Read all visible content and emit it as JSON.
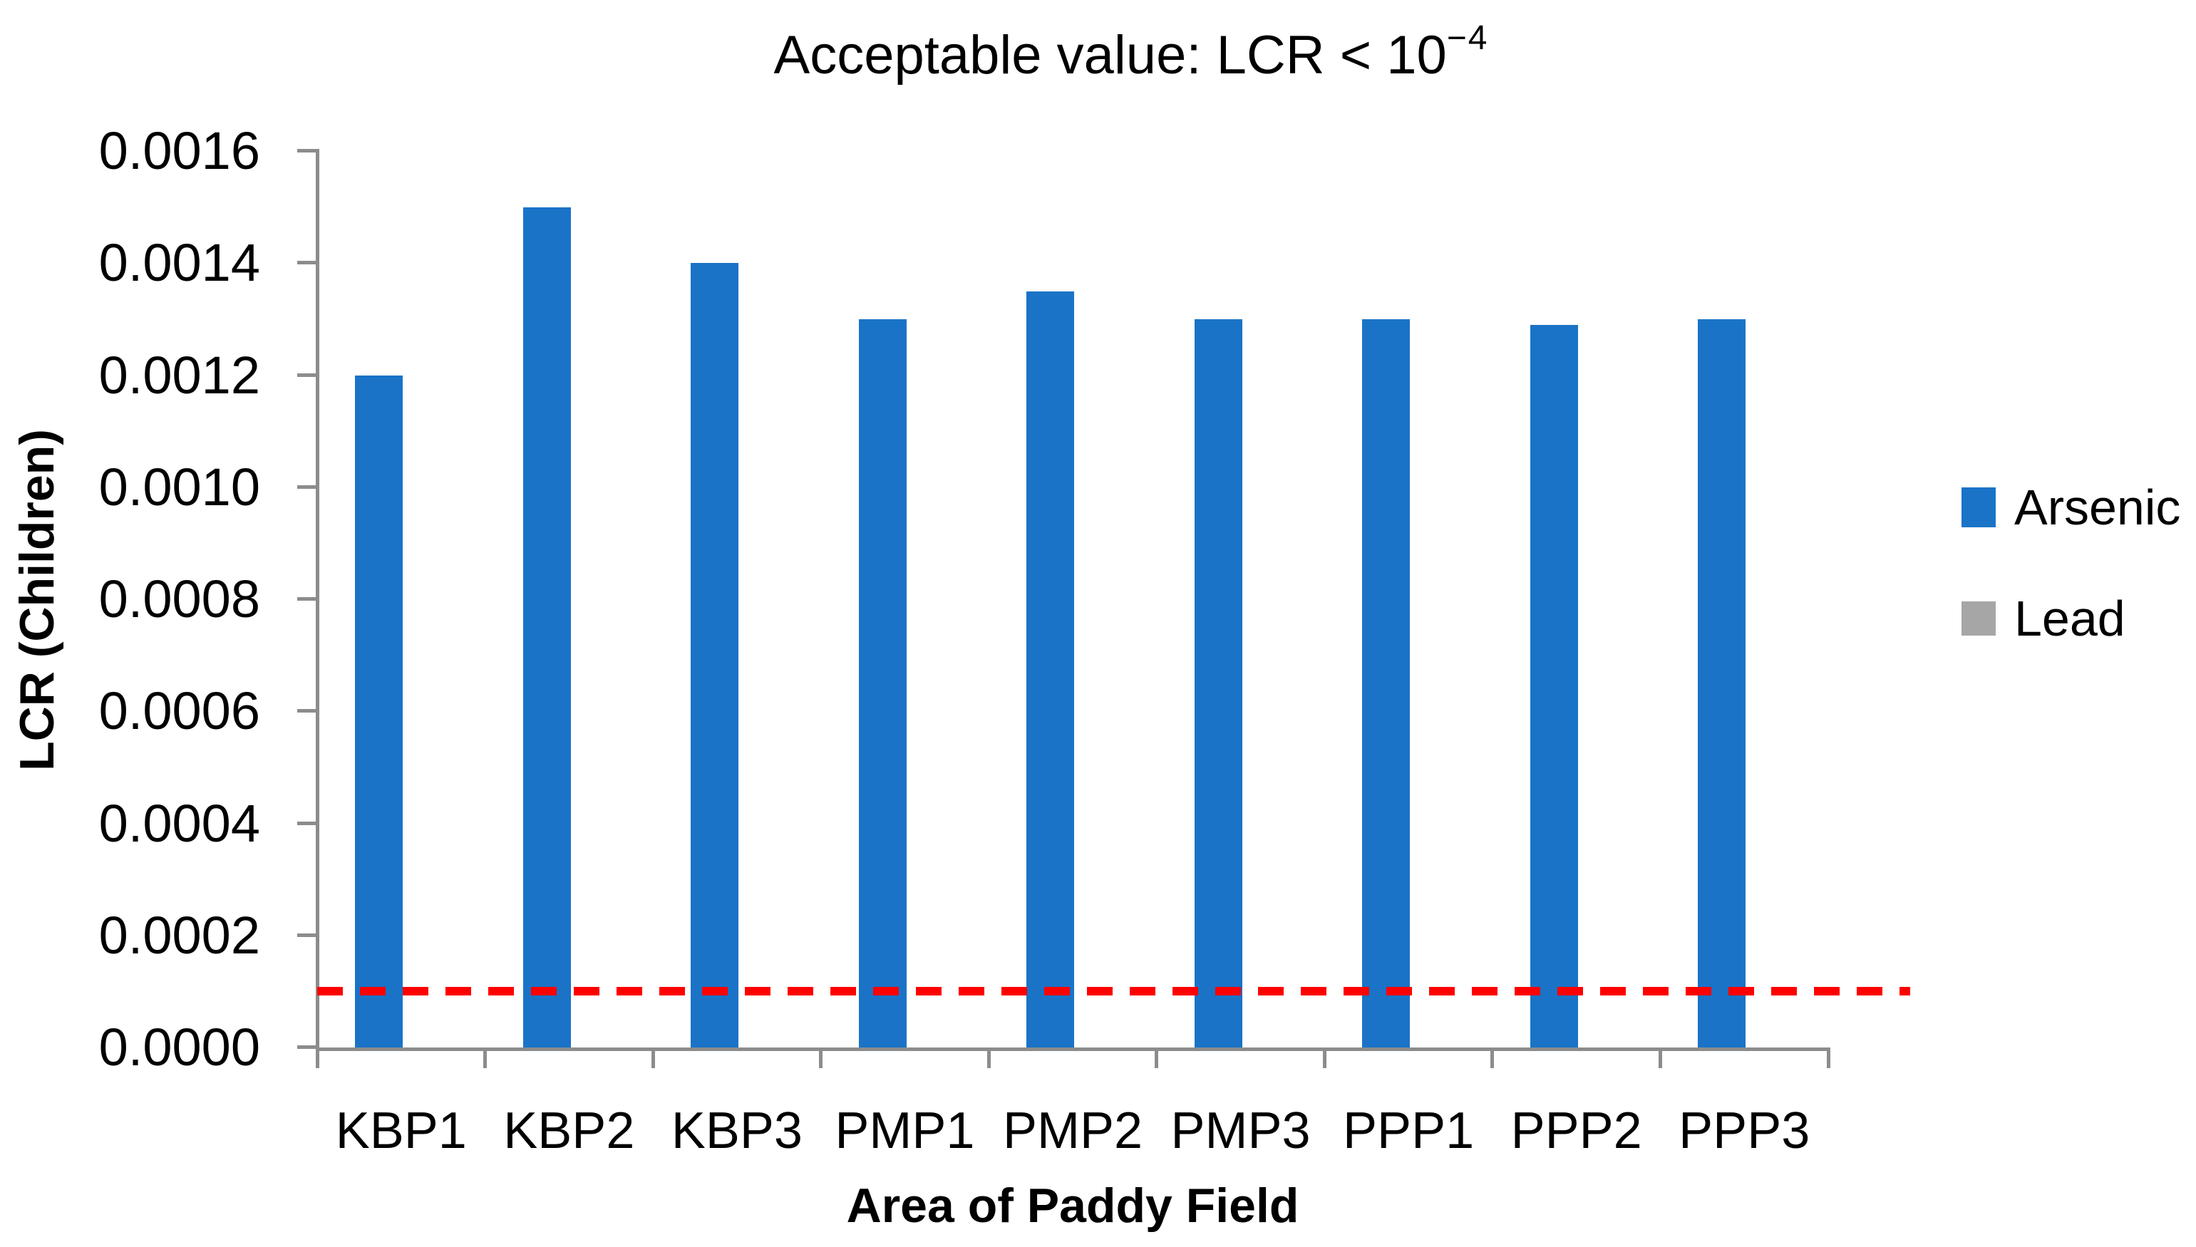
{
  "chart_data": {
    "type": "bar",
    "title": "Acceptable value: LCR < 10⁻⁴",
    "title_main": "Acceptable value: LCR < 10",
    "title_superscript": "−4",
    "xlabel": "Area of Paddy Field",
    "ylabel": "LCR (Children)",
    "categories": [
      "KBP1",
      "KBP2",
      "KBP3",
      "PMP1",
      "PMP2",
      "PMP3",
      "PPP1",
      "PPP2",
      "PPP3"
    ],
    "series": [
      {
        "name": "Arsenic",
        "color": "#1A73C7",
        "values": [
          0.0012,
          0.0015,
          0.0014,
          0.0013,
          0.00135,
          0.0013,
          0.0013,
          0.00129,
          0.0013
        ]
      },
      {
        "name": "Lead",
        "color": "#A6A6A6",
        "values": [
          0,
          0,
          0,
          0,
          0,
          0,
          0,
          0,
          0
        ]
      }
    ],
    "ylim": [
      0,
      0.0016
    ],
    "yticks": [
      "0.0016",
      "0.0014",
      "0.0012",
      "0.0010",
      "0.0008",
      "0.0006",
      "0.0004",
      "0.0002",
      "0.0000"
    ],
    "grid": false,
    "legend_position": "right",
    "reference_line": {
      "value": 0.0001,
      "color": "#FF0000",
      "style": "dashed"
    }
  },
  "colors": {
    "axis": "#8C8C8C",
    "text": "#000000",
    "background": "#FFFFFF"
  }
}
